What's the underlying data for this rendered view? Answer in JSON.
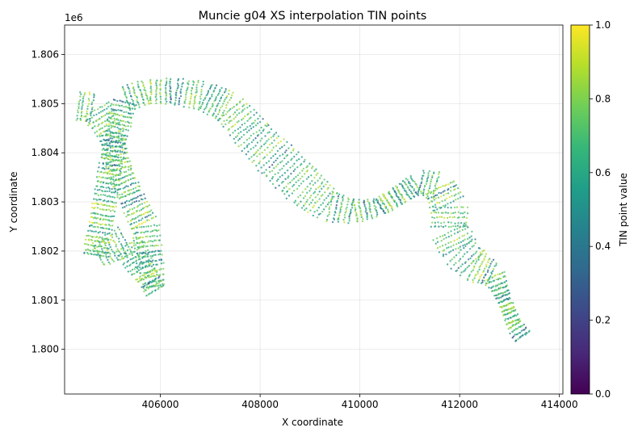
{
  "chart_data": {
    "type": "scatter",
    "title": "Muncie g04 XS interpolation TIN points",
    "xlabel": "X coordinate",
    "ylabel": "Y coordinate",
    "y_offset_label": "1e6",
    "xlim": [
      404080,
      414070
    ],
    "ylim": [
      1799090,
      1806600
    ],
    "x_ticks": [
      404000,
      406000,
      408000,
      410000,
      412000,
      414000
    ],
    "x_tick_labels": [
      "404000",
      "406000",
      "408000",
      "410000",
      "412000",
      "414000"
    ],
    "y_ticks": [
      1800000,
      1801000,
      1802000,
      1803000,
      1804000,
      1805000,
      1806000
    ],
    "y_tick_labels": [
      "1.800",
      "1.801",
      "1.802",
      "1.803",
      "1.804",
      "1.805",
      "1.806"
    ],
    "grid": true,
    "colormap": "viridis",
    "colorbar": {
      "label": "TIN point value",
      "range": [
        0,
        1
      ],
      "ticks": [
        0.0,
        0.2,
        0.4,
        0.6,
        0.8,
        1.0
      ],
      "tick_labels": [
        "0.0",
        "0.2",
        "0.4",
        "0.6",
        "0.8",
        "1.0"
      ]
    },
    "point_alpha": 0.8,
    "corridor_centerline": [
      [
        404350,
        1804950
      ],
      [
        404700,
        1804900
      ],
      [
        405000,
        1804400
      ],
      [
        405200,
        1803600
      ],
      [
        405500,
        1802900
      ],
      [
        405700,
        1802500
      ],
      [
        405800,
        1801700
      ],
      [
        405900,
        1801200
      ],
      [
        405300,
        1802200
      ],
      [
        404700,
        1801900
      ],
      [
        405100,
        1804300
      ],
      [
        405300,
        1805100
      ],
      [
        405800,
        1805250
      ],
      [
        406300,
        1805250
      ],
      [
        406900,
        1805150
      ],
      [
        407400,
        1804900
      ],
      [
        407900,
        1804300
      ],
      [
        408400,
        1803800
      ],
      [
        408900,
        1803300
      ],
      [
        409400,
        1802900
      ],
      [
        409900,
        1802800
      ],
      [
        410400,
        1802900
      ],
      [
        410900,
        1803200
      ],
      [
        411200,
        1803400
      ],
      [
        411600,
        1803300
      ],
      [
        411800,
        1802900
      ],
      [
        411800,
        1802400
      ],
      [
        412000,
        1802000
      ],
      [
        412300,
        1801700
      ],
      [
        412700,
        1801500
      ],
      [
        412900,
        1801000
      ],
      [
        413100,
        1800500
      ],
      [
        413300,
        1800200
      ]
    ],
    "corridor_halfwidth": [
      300,
      320,
      250,
      250,
      250,
      280,
      260,
      200,
      330,
      250,
      220,
      250,
      250,
      260,
      300,
      330,
      380,
      420,
      420,
      330,
      230,
      180,
      200,
      230,
      330,
      370,
      380,
      380,
      350,
      230,
      130,
      150,
      200
    ],
    "value_field": "mixed 0-1, yellow/green dominant"
  }
}
